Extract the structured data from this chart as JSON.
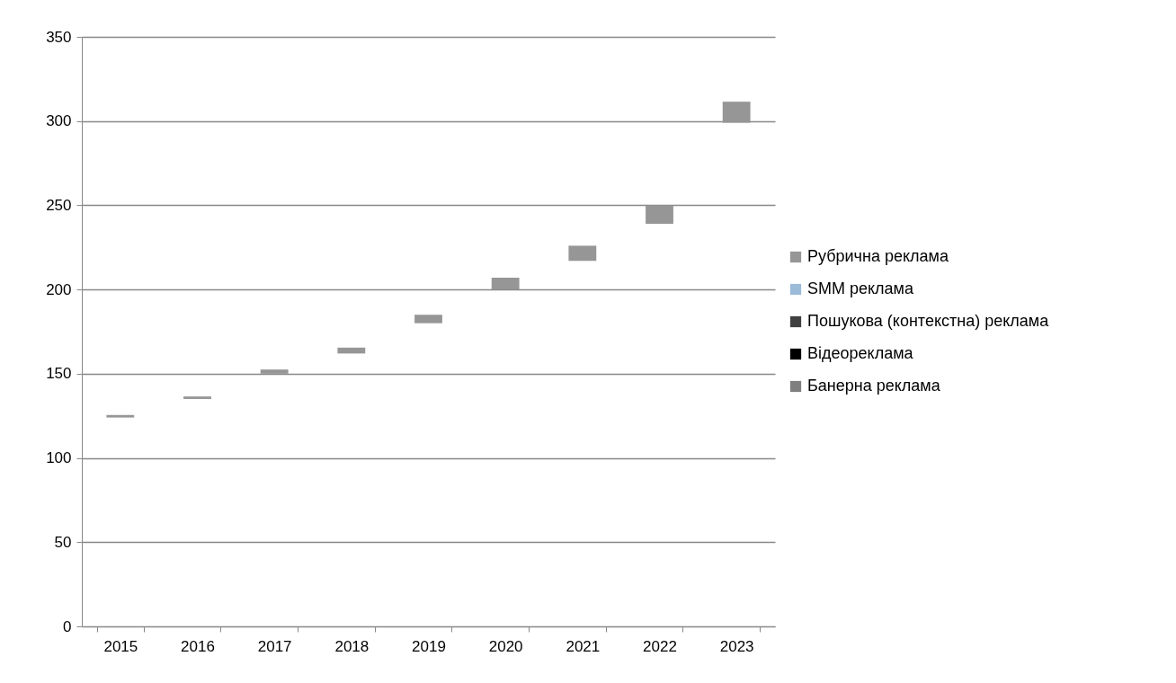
{
  "chart_data": {
    "type": "bar",
    "categories": [
      "2015",
      "2016",
      "2017",
      "2018",
      "2019",
      "2020",
      "2021",
      "2022",
      "2023"
    ],
    "series": [
      {
        "name": "Рубрична реклама",
        "color": "#969696",
        "base": [
          124,
          135,
          150,
          162,
          180,
          200,
          217,
          239,
          299
        ],
        "values": [
          1.5,
          1.5,
          2.5,
          3.5,
          5,
          7,
          9,
          11,
          12.5
        ]
      },
      {
        "name": "SMM реклама",
        "color": "#9bbbd9",
        "values": [
          null,
          null,
          null,
          null,
          null,
          null,
          null,
          null,
          null
        ]
      },
      {
        "name": "Пошукова (контекстна) реклама",
        "color": "#404040",
        "values": [
          null,
          null,
          null,
          null,
          null,
          null,
          null,
          null,
          null
        ]
      },
      {
        "name": "Відеореклама",
        "color": "#000000",
        "values": [
          null,
          null,
          null,
          null,
          null,
          null,
          null,
          null,
          null
        ]
      },
      {
        "name": "Банерна реклама",
        "color": "#7f7f7f",
        "values": [
          null,
          null,
          null,
          null,
          null,
          null,
          null,
          null,
          null
        ]
      }
    ],
    "ylim": [
      0,
      350
    ],
    "yticks": [
      0,
      50,
      100,
      150,
      200,
      250,
      300,
      350
    ],
    "grid": "y",
    "legend": "right"
  }
}
